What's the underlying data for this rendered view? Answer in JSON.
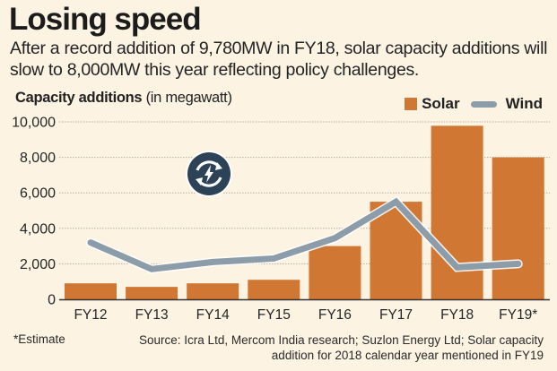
{
  "header": {
    "title": "Losing speed",
    "subtitle": "After a record addition of 9,780MW in FY18, solar capacity additions will slow to 8,000MW this year reflecting policy challenges."
  },
  "footer": {
    "footnote": "*Estimate",
    "source": "Source: Icra Ltd, Mercom India research; Suzlon Energy Ltd; Solar capacity addition for 2018 calendar year mentioned in FY19"
  },
  "icon": "renewable-energy-cycle-icon",
  "colors": {
    "background": "#FCF3E2",
    "solar": "#CF7733",
    "wind": "#8C9CA9",
    "icon_bg": "#2B4257"
  },
  "chart_data": {
    "type": "bar+line",
    "title": "Losing speed",
    "ylabel_bold": "Capacity additions",
    "ylabel_unit": "(in megawatt)",
    "xlabel": "",
    "categories": [
      "FY12",
      "FY13",
      "FY14",
      "FY15",
      "FY16",
      "FY17",
      "FY18",
      "FY19*"
    ],
    "series": [
      {
        "name": "Solar",
        "type": "bar",
        "values": [
          900,
          700,
          900,
          1100,
          3000,
          5500,
          9780,
          8000
        ]
      },
      {
        "name": "Wind",
        "type": "line",
        "values": [
          3200,
          1700,
          2100,
          2300,
          3450,
          5500,
          1800,
          2000
        ]
      }
    ],
    "ylim": [
      0,
      10000
    ],
    "yticks": [
      0,
      2000,
      4000,
      6000,
      8000,
      10000
    ],
    "ytick_labels": [
      "0",
      "2,000",
      "4,000",
      "6,000",
      "8,000",
      "10,000"
    ],
    "grid": true,
    "legend": {
      "position": "top-right",
      "entries": [
        "Solar",
        "Wind"
      ]
    },
    "annotations": [
      "*Estimate"
    ]
  }
}
